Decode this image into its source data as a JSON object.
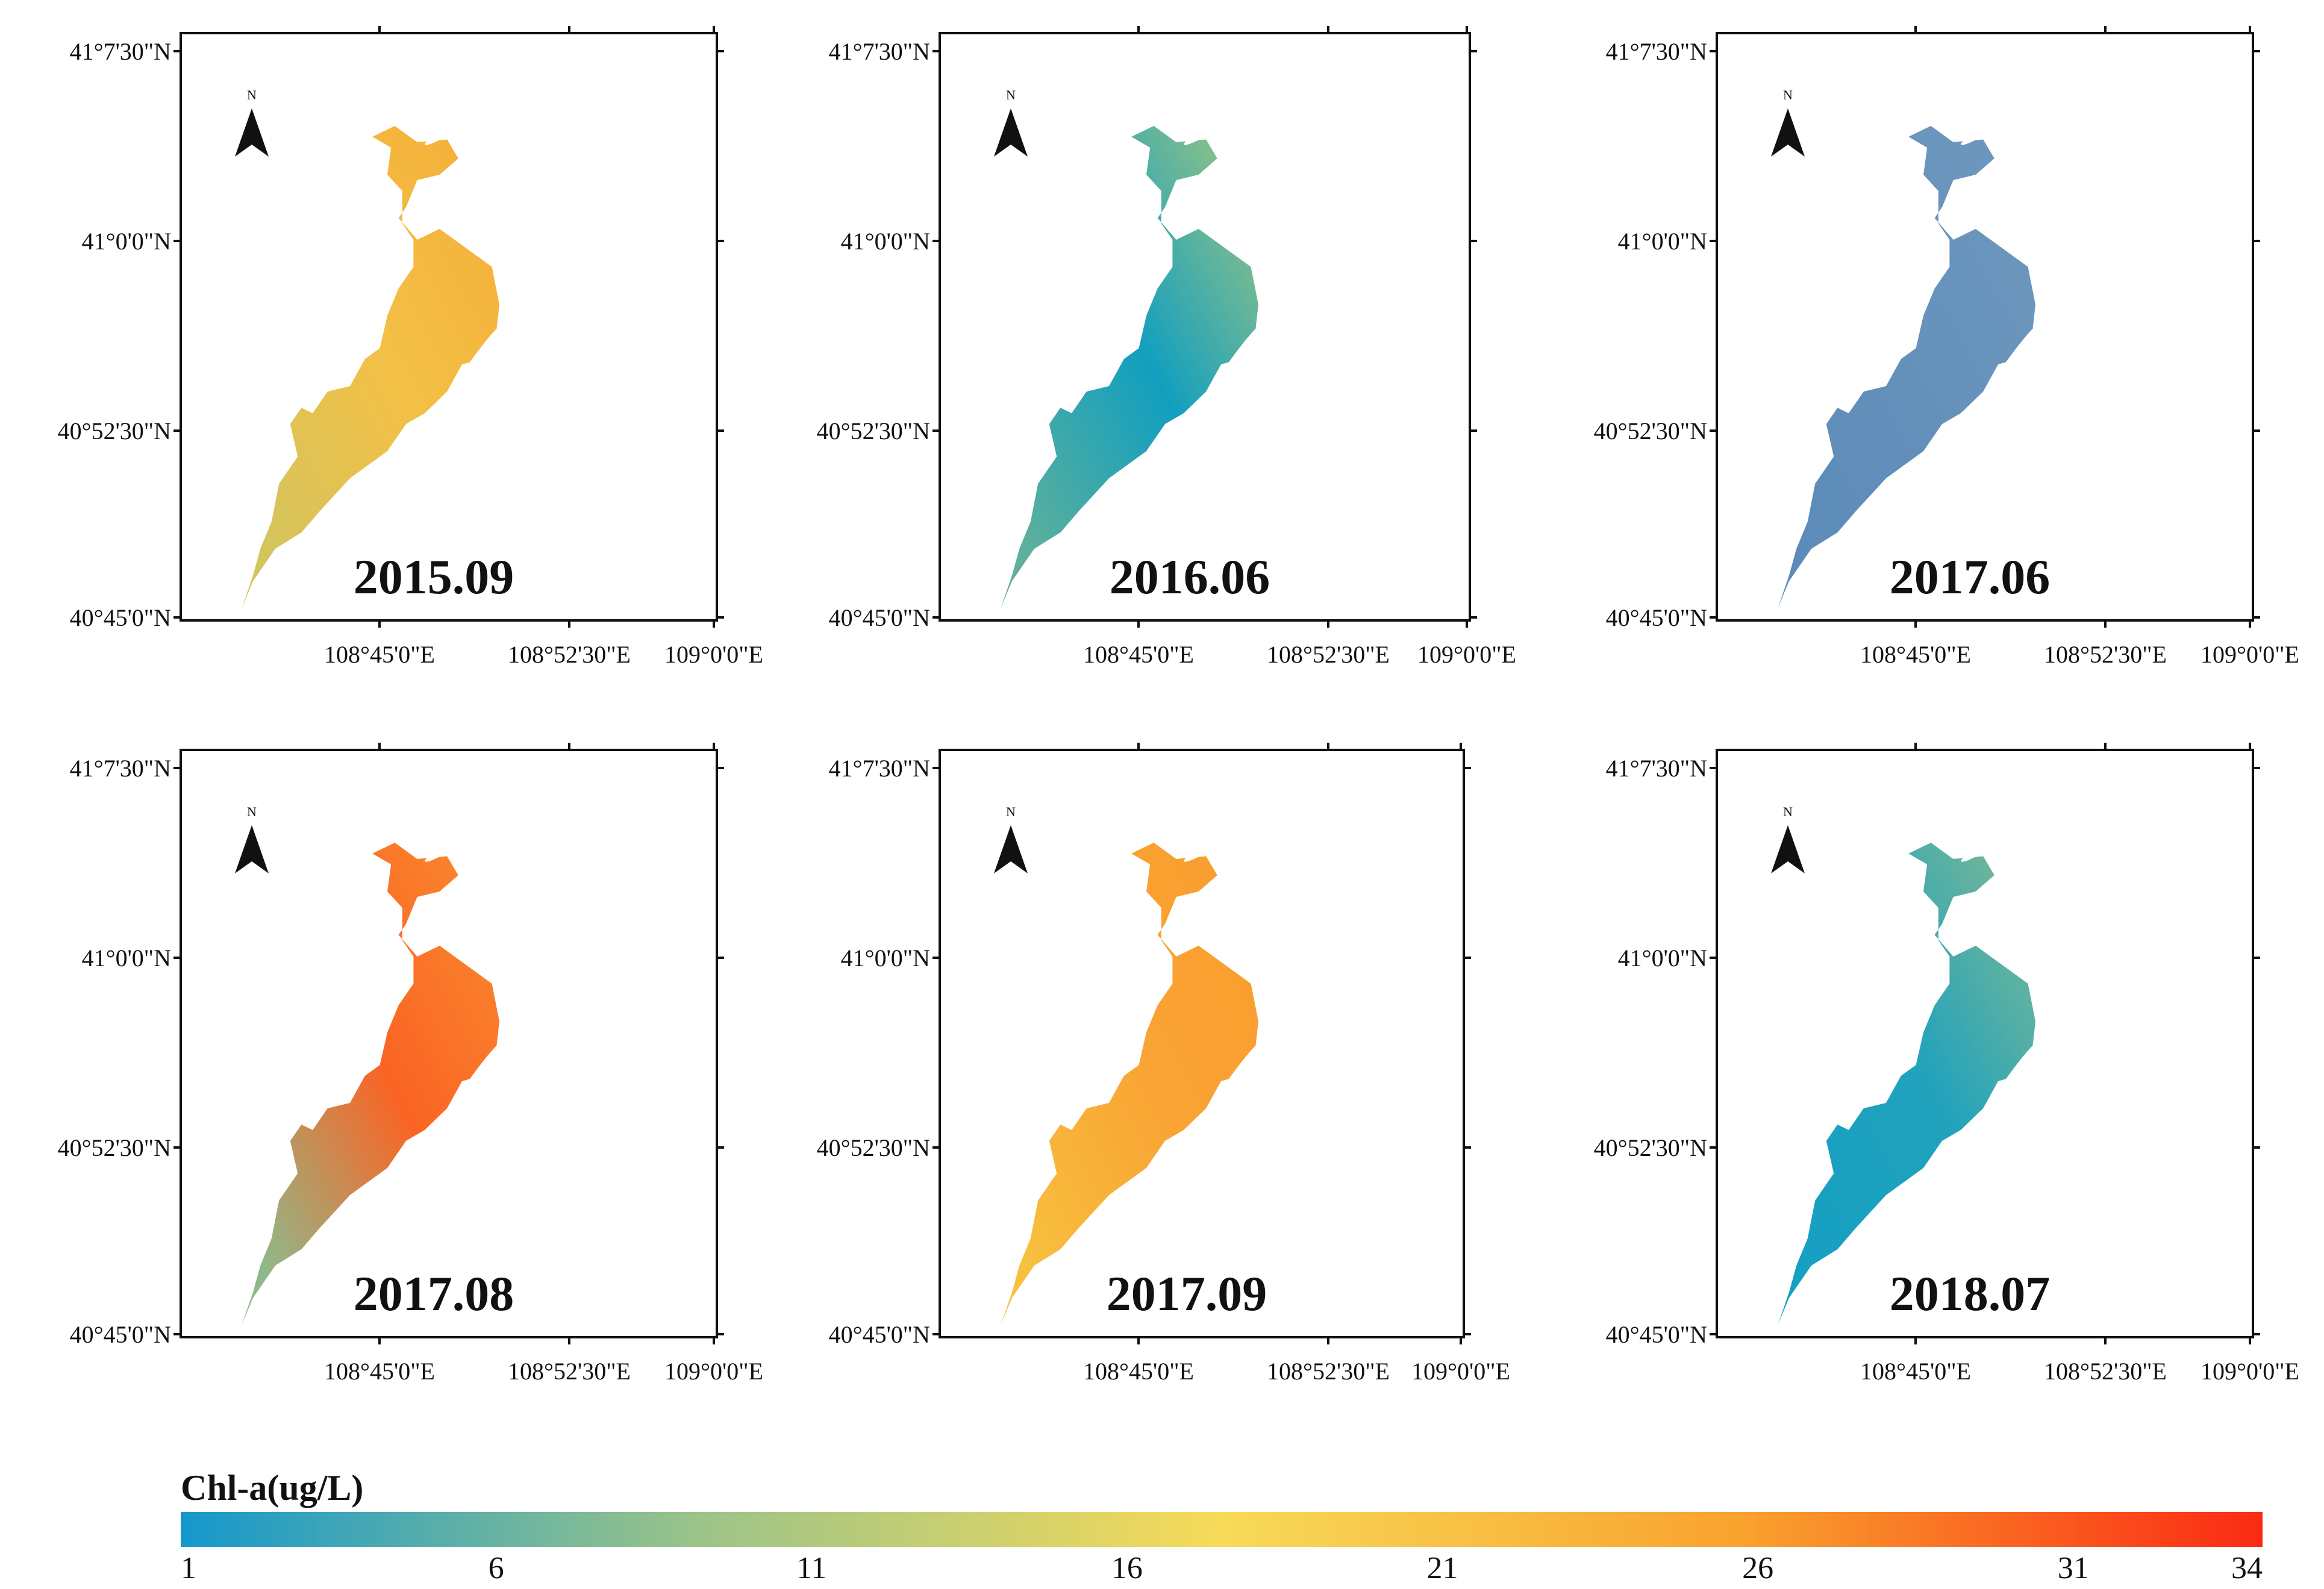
{
  "maps": [
    {
      "label": "2015.09",
      "lake": {
        "a": "#f5b13a",
        "b": "#f3c045",
        "c": "#d4c45e"
      }
    },
    {
      "label": "2016.06",
      "lake": {
        "a": "#86bf8c",
        "b": "#129fbf",
        "c": "#5fb09b"
      }
    },
    {
      "label": "2017.06",
      "lake": {
        "a": "#6d97bd",
        "b": "#6591bb",
        "c": "#5c8bb8"
      }
    },
    {
      "label": "2017.08",
      "lake": {
        "a": "#fa832c",
        "b": "#fa6424",
        "c": "#8fb98a"
      }
    },
    {
      "label": "2017.09",
      "lake": {
        "a": "#f99e2f",
        "b": "#f9a434",
        "c": "#f7c13f"
      }
    },
    {
      "label": "2018.07",
      "lake": {
        "a": "#6db59a",
        "b": "#21a2bd",
        "c": "#15a0c2"
      }
    }
  ],
  "axes": {
    "lat_ticks": [
      "41°7'30\"N",
      "41°0'0\"N",
      "40°52'30\"N",
      "40°45'0\"N"
    ],
    "lon_ticks": [
      "108°45'0\"E",
      "108°52'30\"E",
      "109°0'0\"E"
    ]
  },
  "north_arrow": {
    "letter": "N",
    "icon": "north-arrow-icon"
  },
  "legend": {
    "title": "Chl-a(ug/L)",
    "ticks": [
      "1",
      "6",
      "11",
      "16",
      "21",
      "26",
      "31",
      "34"
    ],
    "min": 1,
    "max": 34,
    "colors": [
      "#1598cc",
      "#9cc488",
      "#f7da58",
      "#f9a22e",
      "#fa2a14"
    ]
  }
}
